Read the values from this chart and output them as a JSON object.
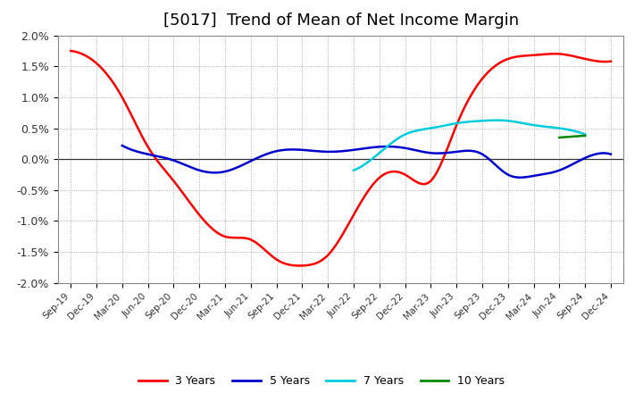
{
  "title": "[5017]  Trend of Mean of Net Income Margin",
  "title_fontsize": 13,
  "background_color": "#ffffff",
  "grid_color": "#999999",
  "ylim": [
    -0.02,
    0.02
  ],
  "yticks": [
    -0.02,
    -0.015,
    -0.01,
    -0.005,
    0.0,
    0.005,
    0.01,
    0.015,
    0.02
  ],
  "ytick_labels": [
    "-2.0%",
    "-1.5%",
    "-1.0%",
    "-0.5%",
    "0.0%",
    "0.5%",
    "1.0%",
    "1.5%",
    "2.0%"
  ],
  "x_labels": [
    "Sep-19",
    "Dec-19",
    "Mar-20",
    "Jun-20",
    "Sep-20",
    "Dec-20",
    "Mar-21",
    "Jun-21",
    "Sep-21",
    "Dec-21",
    "Mar-22",
    "Jun-22",
    "Sep-22",
    "Dec-22",
    "Mar-23",
    "Jun-23",
    "Sep-23",
    "Dec-23",
    "Mar-24",
    "Jun-24",
    "Sep-24",
    "Dec-24"
  ],
  "series": {
    "3 Years": {
      "color": "#ff0000",
      "linewidth": 1.8,
      "data": [
        1.75,
        1.55,
        1.0,
        0.2,
        -0.35,
        -0.9,
        -1.25,
        -1.3,
        -1.62,
        -1.72,
        -1.55,
        -0.9,
        -0.3,
        -0.25,
        -0.35,
        0.55,
        1.3,
        1.62,
        1.68,
        1.7,
        1.62,
        1.58
      ]
    },
    "5 Years": {
      "color": "#0000cc",
      "linewidth": 1.8,
      "data": [
        null,
        null,
        0.22,
        0.08,
        -0.02,
        -0.18,
        -0.2,
        -0.03,
        0.13,
        0.15,
        0.12,
        0.15,
        0.2,
        0.18,
        0.1,
        0.12,
        0.08,
        -0.25,
        -0.27,
        -0.18,
        0.02,
        0.08
      ]
    },
    "7 Years": {
      "color": "#00ccdd",
      "linewidth": 1.8,
      "data": [
        null,
        null,
        null,
        null,
        null,
        null,
        null,
        null,
        null,
        null,
        null,
        -0.18,
        0.1,
        0.4,
        0.5,
        0.58,
        0.62,
        0.62,
        0.55,
        0.5,
        0.4,
        null
      ]
    },
    "10 Years": {
      "color": "#008800",
      "linewidth": 1.8,
      "data": [
        null,
        null,
        null,
        null,
        null,
        null,
        null,
        null,
        null,
        null,
        null,
        null,
        null,
        null,
        null,
        null,
        null,
        null,
        null,
        0.35,
        0.38,
        null
      ]
    }
  },
  "legend_labels": [
    "3 Years",
    "5 Years",
    "7 Years",
    "10 Years"
  ],
  "legend_colors": [
    "#ff0000",
    "#0000cc",
    "#00ccdd",
    "#008800"
  ]
}
